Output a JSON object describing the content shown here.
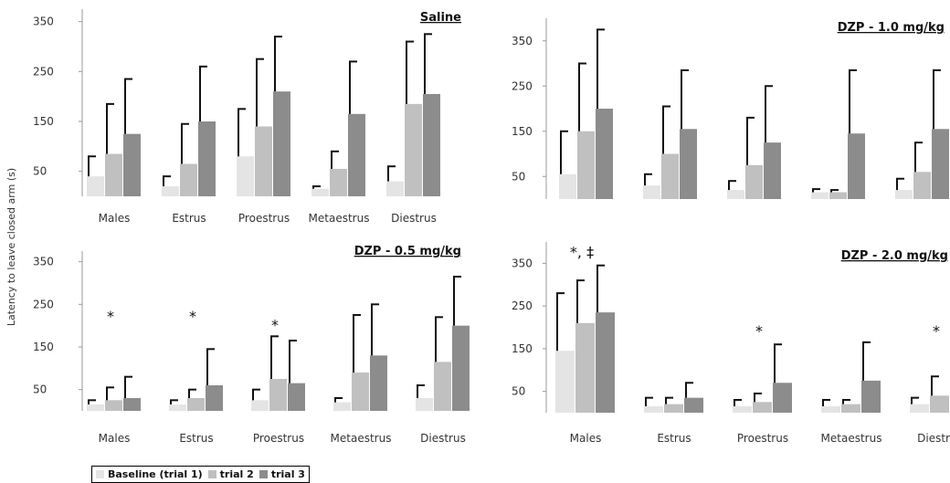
{
  "figure": {
    "ylabel": "Latency to leave closed arm (s)",
    "colors": {
      "trial1": "#e4e4e4",
      "trial2": "#c0c0c0",
      "trial3": "#8c8c8c"
    },
    "legend": [
      "Baseline (trial 1)",
      "trial 2",
      "trial 3"
    ]
  },
  "chart_data": [
    {
      "type": "bar",
      "title": "Saline",
      "categories": [
        "Males",
        "Estrus",
        "Proestrus",
        "Metaestrus",
        "Diestrus"
      ],
      "yticks": [
        50,
        150,
        250,
        350
      ],
      "ylim": [
        0,
        375
      ],
      "series": [
        {
          "name": "Baseline (trial 1)",
          "values": [
            40,
            20,
            80,
            15,
            30
          ],
          "errors": [
            40,
            20,
            95,
            5,
            30
          ]
        },
        {
          "name": "trial 2",
          "values": [
            85,
            65,
            140,
            55,
            185
          ],
          "errors": [
            100,
            80,
            135,
            35,
            125
          ]
        },
        {
          "name": "trial 3",
          "values": [
            125,
            150,
            210,
            165,
            205
          ],
          "errors": [
            110,
            110,
            110,
            105,
            120
          ]
        }
      ],
      "annotations": []
    },
    {
      "type": "bar",
      "title": "DZP - 1.0 mg/kg",
      "categories": [
        "Males",
        "Estrus",
        "Proestrus",
        "Metaestrus",
        "Diestrus"
      ],
      "yticks": [
        50,
        150,
        250,
        350
      ],
      "ylim": [
        0,
        400
      ],
      "series": [
        {
          "name": "Baseline (trial 1)",
          "values": [
            55,
            30,
            20,
            15,
            20
          ],
          "errors": [
            95,
            25,
            20,
            7,
            25
          ]
        },
        {
          "name": "trial 2",
          "values": [
            150,
            100,
            75,
            15,
            60
          ],
          "errors": [
            150,
            105,
            105,
            5,
            65
          ]
        },
        {
          "name": "trial 3",
          "values": [
            200,
            155,
            125,
            145,
            155
          ],
          "errors": [
            175,
            130,
            125,
            140,
            130
          ]
        }
      ],
      "annotations": []
    },
    {
      "type": "bar",
      "title": "DZP - 0.5 mg/kg",
      "categories": [
        "Males",
        "Estrus",
        "Proestrus",
        "Metaestrus",
        "Diestrus"
      ],
      "yticks": [
        50,
        150,
        250,
        350
      ],
      "ylim": [
        0,
        375
      ],
      "series": [
        {
          "name": "Baseline (trial 1)",
          "values": [
            15,
            15,
            25,
            20,
            30
          ],
          "errors": [
            10,
            10,
            25,
            10,
            30
          ]
        },
        {
          "name": "trial 2",
          "values": [
            25,
            30,
            75,
            90,
            115
          ],
          "errors": [
            30,
            20,
            100,
            135,
            105
          ]
        },
        {
          "name": "trial 3",
          "values": [
            30,
            60,
            65,
            130,
            200
          ],
          "errors": [
            50,
            85,
            100,
            120,
            115
          ]
        }
      ],
      "annotations": [
        {
          "text": "*",
          "category": 0,
          "y": 210
        },
        {
          "text": "*",
          "category": 1,
          "y": 210
        },
        {
          "text": "*",
          "category": 2,
          "y": 190
        }
      ]
    },
    {
      "type": "bar",
      "title": "DZP - 2.0 mg/kg",
      "categories": [
        "Males",
        "Estrus",
        "Proestrus",
        "Metaestrus",
        "Diestrus"
      ],
      "yticks": [
        50,
        150,
        250,
        350
      ],
      "ylim": [
        0,
        400
      ],
      "series": [
        {
          "name": "Baseline (trial 1)",
          "values": [
            145,
            15,
            15,
            15,
            20
          ],
          "errors": [
            135,
            20,
            15,
            15,
            15
          ]
        },
        {
          "name": "trial 2",
          "values": [
            210,
            20,
            25,
            20,
            40
          ],
          "errors": [
            100,
            15,
            20,
            10,
            45
          ]
        },
        {
          "name": "trial 3",
          "values": [
            235,
            35,
            70,
            75,
            35
          ],
          "errors": [
            110,
            35,
            90,
            90,
            25
          ]
        }
      ],
      "annotations": [
        {
          "text": "*, ‡",
          "category": 0,
          "y": 365
        },
        {
          "text": "*",
          "category": 2,
          "y": 180
        },
        {
          "text": "*",
          "category": 4,
          "y": 180
        }
      ]
    }
  ]
}
